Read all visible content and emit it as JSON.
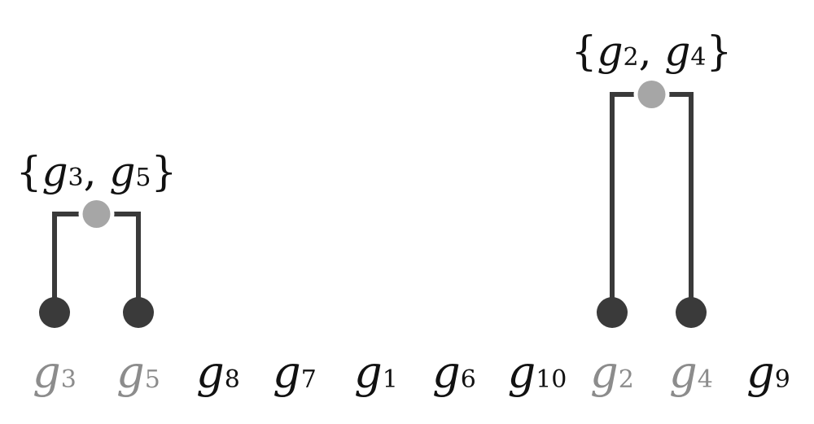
{
  "colors": {
    "highlight_label": "#8c8c8c",
    "normal_label": "#111111",
    "leaf_node": "#3a3a3a",
    "merge_node": "#a6a6a6",
    "bracket": "#3a3a3a"
  },
  "leaves": [
    {
      "id": "g3",
      "base": "g",
      "sub": "3",
      "highlighted": true
    },
    {
      "id": "g5",
      "base": "g",
      "sub": "5",
      "highlighted": true
    },
    {
      "id": "g8",
      "base": "g",
      "sub": "8",
      "highlighted": false
    },
    {
      "id": "g7",
      "base": "g",
      "sub": "7",
      "highlighted": false
    },
    {
      "id": "g1",
      "base": "g",
      "sub": "1",
      "highlighted": false
    },
    {
      "id": "g6",
      "base": "g",
      "sub": "6",
      "highlighted": false
    },
    {
      "id": "g10",
      "base": "g",
      "sub": "10",
      "highlighted": false
    },
    {
      "id": "g2",
      "base": "g",
      "sub": "2",
      "highlighted": true
    },
    {
      "id": "g4",
      "base": "g",
      "sub": "4",
      "highlighted": true
    },
    {
      "id": "g9",
      "base": "g",
      "sub": "9",
      "highlighted": false
    }
  ],
  "clusters": [
    {
      "id": "cluster-g3-g5",
      "members": [
        "g3",
        "g5"
      ],
      "label": {
        "open": "{",
        "base1": "g",
        "sub1": "3",
        "sep": ", ",
        "base2": "g",
        "sub2": "5",
        "close": "}"
      }
    },
    {
      "id": "cluster-g2-g4",
      "members": [
        "g2",
        "g4"
      ],
      "label": {
        "open": "{",
        "base1": "g",
        "sub1": "2",
        "sep": ", ",
        "base2": "g",
        "sub2": "4",
        "close": "}"
      }
    }
  ]
}
